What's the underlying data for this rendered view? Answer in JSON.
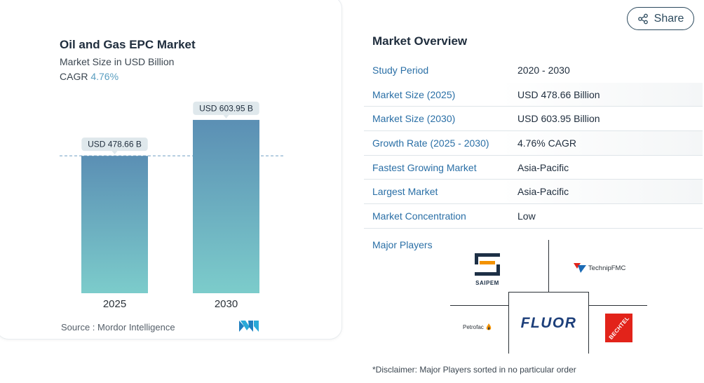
{
  "chart": {
    "title": "Oil and Gas EPC Market",
    "subtitle": "Market Size in USD Billion",
    "cagr_label": "CAGR",
    "cagr_value": "4.76%",
    "source": "Source :  Mordor Intelligence"
  },
  "chart_data": {
    "type": "bar",
    "categories": [
      "2025",
      "2030"
    ],
    "values": [
      478.66,
      603.95
    ],
    "data_labels": [
      "USD 478.66 B",
      "USD 603.95 B"
    ],
    "title": "Oil and Gas EPC Market",
    "subtitle": "Market Size in USD Billion",
    "ylim": [
      0,
      660
    ],
    "reference_line_value": 478.66,
    "colors": {
      "bar_top": "#5b8fb4",
      "bar_bottom": "#7ccccb",
      "reference_line": "#6f9fc4",
      "label_bg": "#dfe8ec"
    }
  },
  "share": {
    "label": "Share"
  },
  "overview": {
    "title": "Market Overview",
    "rows": [
      {
        "label": "Study Period",
        "value": "2020 - 2030"
      },
      {
        "label": "Market Size (2025)",
        "value": "USD 478.66 Billion"
      },
      {
        "label": "Market Size (2030)",
        "value": "USD 603.95 Billion"
      },
      {
        "label": "Growth Rate (2025 - 2030)",
        "value": "4.76% CAGR"
      },
      {
        "label": "Fastest Growing Market",
        "value": "Asia-Pacific"
      },
      {
        "label": "Largest Market",
        "value": "Asia-Pacific"
      },
      {
        "label": "Market Concentration",
        "value": "Low"
      }
    ]
  },
  "players": {
    "label": "Major Players",
    "saipem": "SAIPEM",
    "technip": "TechnipFMC",
    "petrofac": "Petrofac",
    "fluor": "FLUOR",
    "bechtel": "BECHTEL"
  },
  "disclaimer": "*Disclaimer: Major Players sorted in no particular order"
}
